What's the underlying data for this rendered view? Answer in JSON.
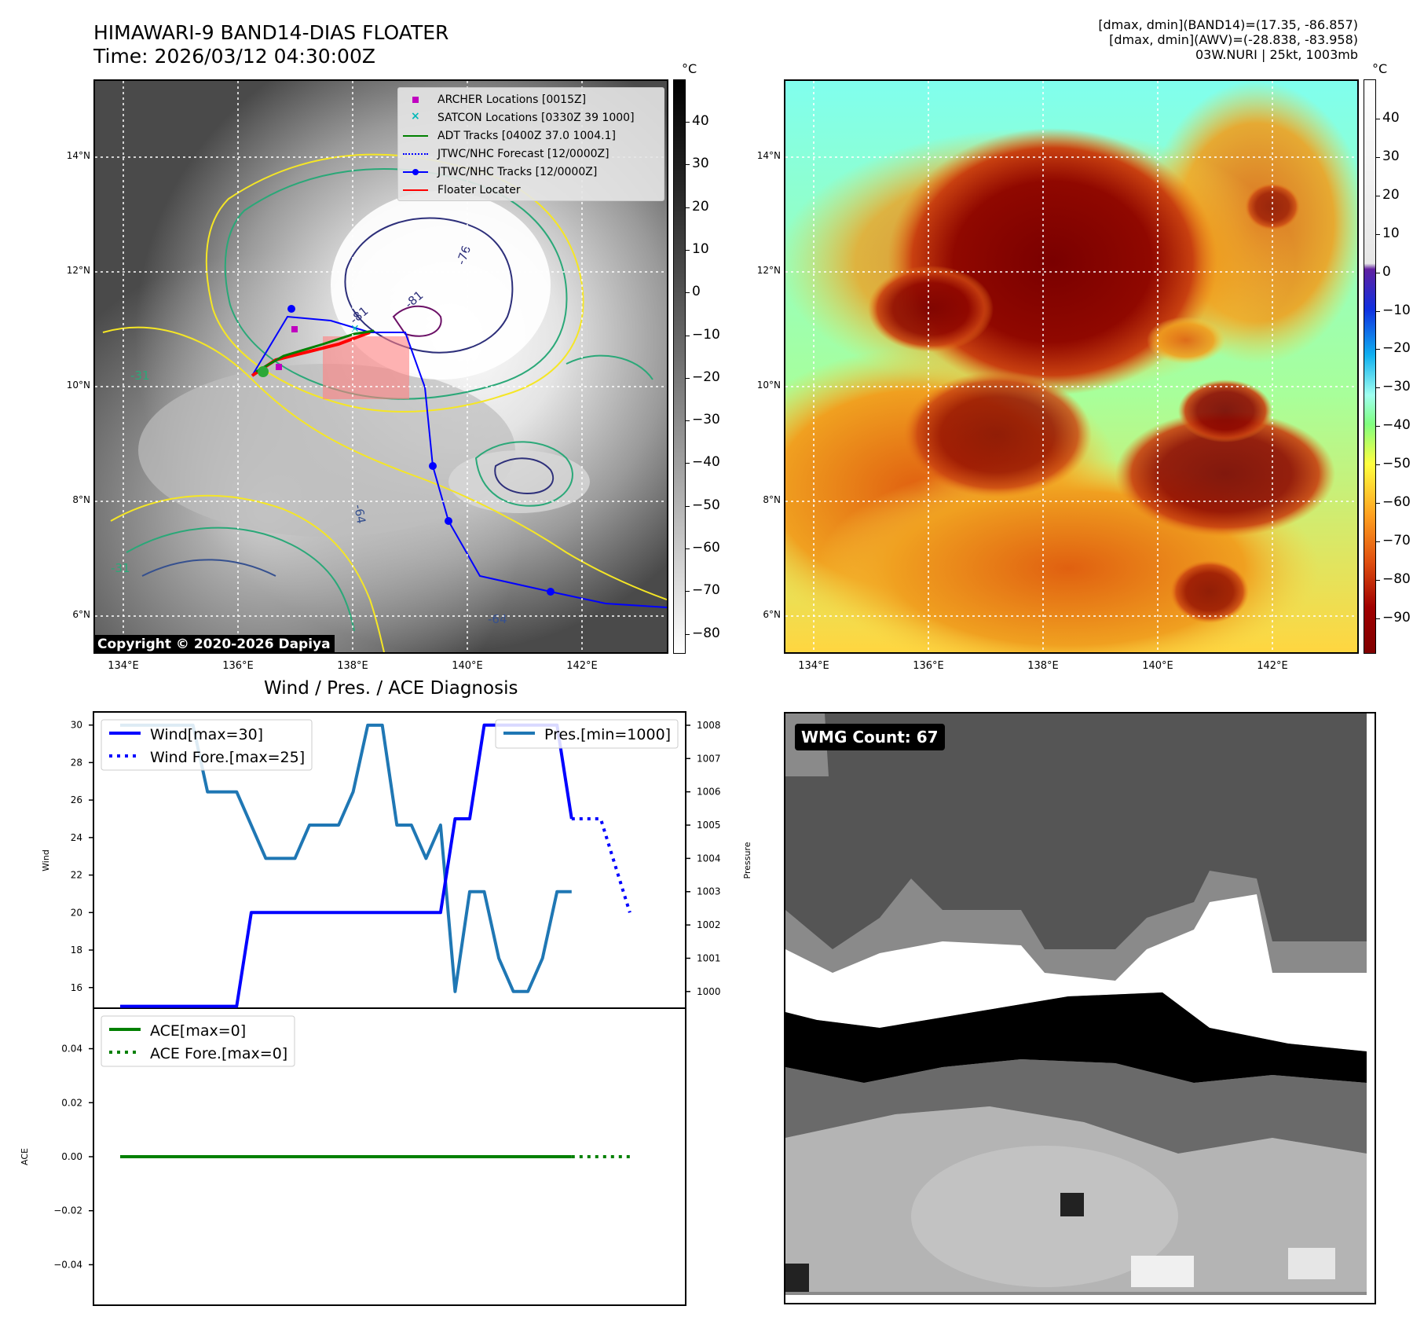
{
  "header": {
    "title_line1": "HIMAWARI-9 BAND14-DIAS FLOATER",
    "title_line2": "Time: 2026/03/12 04:30:00Z",
    "info_line1": "[dmax, dmin](BAND14)=(17.35, -86.857)",
    "info_line2": "[dmax, dmin](AWV)=(-28.838, -83.958)",
    "info_line3": "03W.NURI | 25kt, 1003mb"
  },
  "map_axes": {
    "lat_labels": [
      "14°N",
      "12°N",
      "10°N",
      "8°N",
      "6°N"
    ],
    "lon_labels": [
      "134°E",
      "136°E",
      "138°E",
      "140°E",
      "142°E"
    ]
  },
  "ir_map": {
    "colorbar_unit": "°C",
    "colorbar_ticks": [
      "40",
      "30",
      "20",
      "10",
      "0",
      "−10",
      "−20",
      "−30",
      "−40",
      "−50",
      "−60",
      "−70",
      "−80"
    ],
    "copyright": "Copyright © 2020-2026 Dapiya",
    "contour_labels": [
      "-76",
      "-81",
      "-81",
      "-31",
      "-64",
      "-64",
      "-31"
    ],
    "legend": [
      {
        "label": "ARCHER Locations [0015Z]",
        "color": "#c000c0",
        "marker": "square"
      },
      {
        "label": "SATCON Locations [0330Z 39 1000]",
        "color": "#00b8b8",
        "marker": "x"
      },
      {
        "label": "ADT Tracks [0400Z 37.0 1004.1]",
        "color": "#008000",
        "marker": "line"
      },
      {
        "label": "JTWC/NHC Forecast [12/0000Z]",
        "color": "#0000ff",
        "marker": "dotted"
      },
      {
        "label": "JTWC/NHC Tracks [12/0000Z]",
        "color": "#0000ff",
        "marker": "line-dot"
      },
      {
        "label": "Floater Locater",
        "color": "#ff0000",
        "marker": "line"
      }
    ]
  },
  "dias_map": {
    "colorbar_unit": "°C",
    "colorbar_ticks": [
      "40",
      "30",
      "20",
      "10",
      "0",
      "−10",
      "−20",
      "−30",
      "−40",
      "−50",
      "−60",
      "−70",
      "−80",
      "−90"
    ]
  },
  "diag_title": "Wind / Pres. / ACE Diagnosis",
  "wmg_label": "WMG Count: 67",
  "chart_data": [
    {
      "type": "line",
      "title": "Wind / Pres. / ACE Diagnosis",
      "ylabel": "Wind",
      "ylabel_right": "Pressure",
      "ylim": [
        14.9,
        30.7
      ],
      "ylim_right": [
        999.5,
        1008.4
      ],
      "yticks": [
        16,
        18,
        20,
        22,
        24,
        26,
        28,
        30
      ],
      "yticks_right": [
        1000,
        1001,
        1002,
        1003,
        1004,
        1005,
        1006,
        1007,
        1008
      ],
      "x_index_range": [
        0,
        37
      ],
      "series": [
        {
          "name": "Wind[max=30]",
          "axis": "left",
          "color": "#0000ff",
          "style": "solid",
          "x": [
            0,
            8,
            9,
            22,
            23,
            24,
            25,
            30,
            31
          ],
          "y": [
            15,
            15,
            20,
            20,
            25,
            25,
            30,
            30,
            25
          ]
        },
        {
          "name": "Wind Fore.[max=25]",
          "axis": "left",
          "color": "#0000ff",
          "style": "dotted",
          "x": [
            31,
            33,
            35
          ],
          "y": [
            25,
            25,
            20
          ]
        },
        {
          "name": "Pres.[min=1000]",
          "axis": "right",
          "color": "#1f77b4",
          "style": "solid",
          "x": [
            0,
            5,
            6,
            8,
            10,
            12,
            13,
            15,
            16,
            17,
            18,
            19,
            20,
            21,
            22,
            23,
            24,
            25,
            26,
            27,
            28,
            29,
            30,
            31
          ],
          "y": [
            1008,
            1008,
            1006,
            1006,
            1004,
            1004,
            1005,
            1005,
            1006,
            1008,
            1008,
            1005,
            1005,
            1004,
            1005,
            1000,
            1003,
            1003,
            1001,
            1000,
            1000,
            1001,
            1003,
            1003
          ]
        }
      ]
    },
    {
      "type": "line",
      "ylabel": "ACE",
      "ylim": [
        -0.055,
        0.055
      ],
      "yticks": [
        0.04,
        0.02,
        0.0,
        -0.02,
        -0.04
      ],
      "ytick_labels": [
        "0.04",
        "0.02",
        "0.00",
        "−0.02",
        "−0.04"
      ],
      "x_index_range": [
        0,
        37
      ],
      "series": [
        {
          "name": "ACE[max=0]",
          "color": "#008000",
          "style": "solid",
          "x": [
            0,
            31
          ],
          "y": [
            0,
            0
          ]
        },
        {
          "name": "ACE Fore.[max=0]",
          "color": "#008000",
          "style": "dotted",
          "x": [
            31,
            35
          ],
          "y": [
            0,
            0
          ]
        }
      ]
    }
  ]
}
